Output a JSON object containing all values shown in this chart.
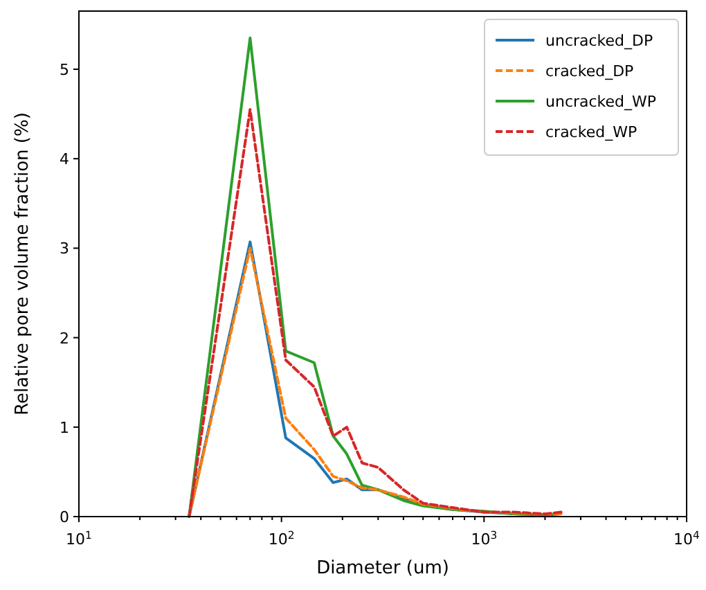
{
  "chart_data": {
    "type": "line",
    "xlabel": "Diameter (um)",
    "ylabel": "Relative pore volume fraction (%)",
    "log": "x",
    "xlim": [
      10,
      10000
    ],
    "xticks": [
      {
        "value": 10,
        "label": "10$^{1}$"
      },
      {
        "value": 100,
        "label": "10$^{2}$"
      },
      {
        "value": 1000,
        "label": "10$^{3}$"
      },
      {
        "value": 10000,
        "label": "10$^{4}$"
      }
    ],
    "ylim": [
      0,
      5.65
    ],
    "yticks": [
      0,
      1,
      2,
      3,
      4,
      5
    ],
    "legend": "top right",
    "grid": false,
    "x": [
      35,
      70,
      105,
      145,
      180,
      210,
      250,
      300,
      400,
      500,
      700,
      1000,
      1400,
      2000,
      2400
    ],
    "series": [
      {
        "name": "uncracked_DP",
        "color": "#1f77b4",
        "line_style": "solid",
        "values": [
          0,
          3.07,
          0.88,
          0.65,
          0.38,
          0.42,
          0.3,
          0.3,
          0.2,
          0.13,
          0.08,
          0.05,
          0.03,
          0.02,
          0.03
        ]
      },
      {
        "name": "cracked_DP",
        "color": "#ff7f0e",
        "line_style": "dashed",
        "values": [
          0,
          3.0,
          1.1,
          0.75,
          0.45,
          0.4,
          0.32,
          0.3,
          0.22,
          0.14,
          0.09,
          0.05,
          0.04,
          0.03,
          0.03
        ]
      },
      {
        "name": "uncracked_WP",
        "color": "#2ca02c",
        "line_style": "solid",
        "values": [
          0,
          5.35,
          1.85,
          1.72,
          0.9,
          0.7,
          0.35,
          0.3,
          0.18,
          0.12,
          0.08,
          0.06,
          0.03,
          0.02,
          0.03
        ]
      },
      {
        "name": "cracked_WP",
        "color": "#d62728",
        "line_style": "dashed",
        "values": [
          0,
          4.55,
          1.75,
          1.45,
          0.9,
          1.0,
          0.6,
          0.55,
          0.3,
          0.15,
          0.1,
          0.05,
          0.05,
          0.03,
          0.05
        ]
      }
    ]
  }
}
